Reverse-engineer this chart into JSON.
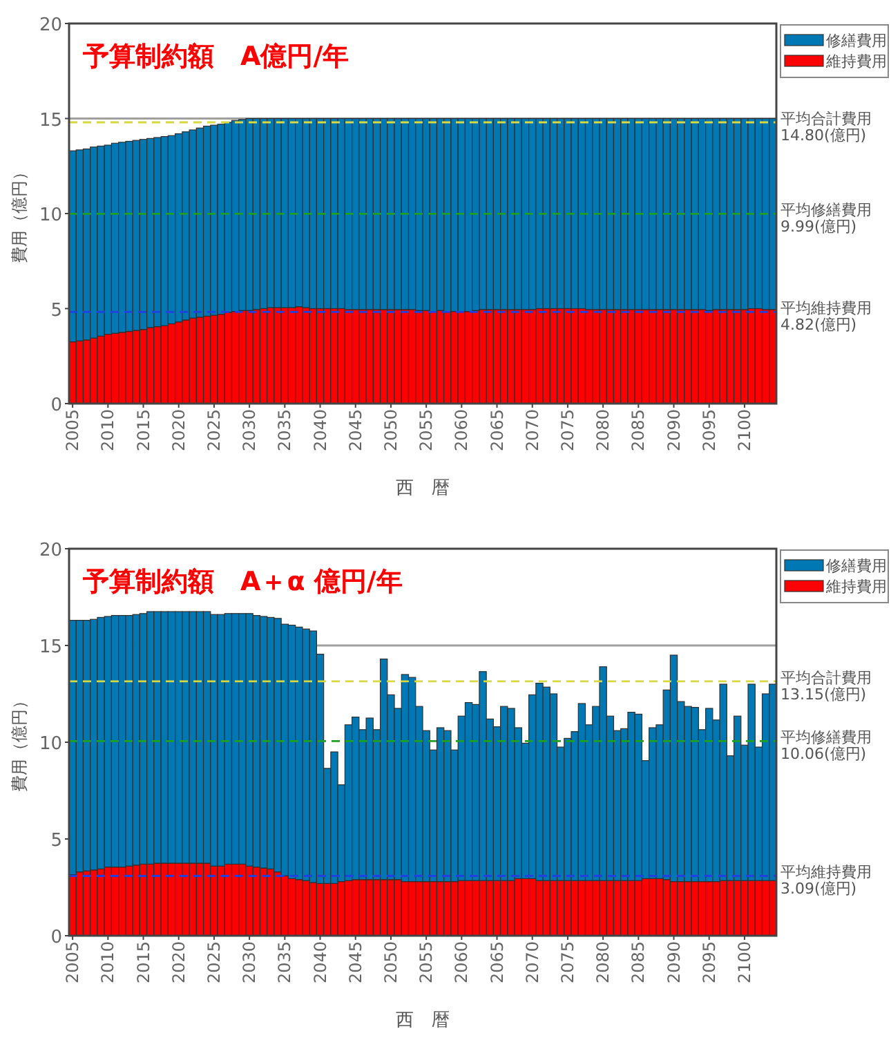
{
  "chart_data": [
    {
      "type": "bar",
      "title": "予算制約額　A億円/年",
      "xlabel": "西　暦",
      "ylabel": "費用（億円）",
      "stacked": true,
      "legend": "top right",
      "x": [
        2005,
        2006,
        2007,
        2008,
        2009,
        2010,
        2011,
        2012,
        2013,
        2014,
        2015,
        2016,
        2017,
        2018,
        2019,
        2020,
        2021,
        2022,
        2023,
        2024,
        2025,
        2026,
        2027,
        2028,
        2029,
        2030,
        2031,
        2032,
        2033,
        2034,
        2035,
        2036,
        2037,
        2038,
        2039,
        2040,
        2041,
        2042,
        2043,
        2044,
        2045,
        2046,
        2047,
        2048,
        2049,
        2050,
        2051,
        2052,
        2053,
        2054,
        2055,
        2056,
        2057,
        2058,
        2059,
        2060,
        2061,
        2062,
        2063,
        2064,
        2065,
        2066,
        2067,
        2068,
        2069,
        2070,
        2071,
        2072,
        2073,
        2074,
        2075,
        2076,
        2077,
        2078,
        2079,
        2080,
        2081,
        2082,
        2083,
        2084,
        2085,
        2086,
        2087,
        2088,
        2089,
        2090,
        2091,
        2092,
        2093,
        2094,
        2095,
        2096,
        2097,
        2098,
        2099,
        2100,
        2101,
        2102,
        2103,
        2104
      ],
      "xlim": [
        2004.5,
        2104.5
      ],
      "xticks": [
        2005,
        2010,
        2015,
        2020,
        2025,
        2030,
        2035,
        2040,
        2045,
        2050,
        2055,
        2060,
        2065,
        2070,
        2075,
        2080,
        2085,
        2090,
        2095,
        2100
      ],
      "ylim": [
        0,
        20
      ],
      "yticks": [
        0,
        5,
        10,
        15,
        20
      ],
      "series": [
        {
          "name": "維持費用",
          "color": "#ff0000",
          "values": [
            3.25,
            3.3,
            3.35,
            3.45,
            3.55,
            3.65,
            3.7,
            3.75,
            3.8,
            3.85,
            3.9,
            4.0,
            4.05,
            4.1,
            4.2,
            4.3,
            4.4,
            4.5,
            4.55,
            4.6,
            4.65,
            4.7,
            4.8,
            4.85,
            4.9,
            4.9,
            4.95,
            5.0,
            5.05,
            5.05,
            5.05,
            5.05,
            5.1,
            5.05,
            5.0,
            5.0,
            5.0,
            5.0,
            5.0,
            4.95,
            4.95,
            4.95,
            4.95,
            4.95,
            4.95,
            4.95,
            4.95,
            4.95,
            4.95,
            4.9,
            4.9,
            4.85,
            4.9,
            4.85,
            4.85,
            4.85,
            4.85,
            4.9,
            4.95,
            4.95,
            4.95,
            4.95,
            4.95,
            4.95,
            4.95,
            4.95,
            5.0,
            5.0,
            5.0,
            5.0,
            5.0,
            5.0,
            5.0,
            4.95,
            4.95,
            4.95,
            4.95,
            4.95,
            4.95,
            4.95,
            4.95,
            4.95,
            4.95,
            4.95,
            4.95,
            4.95,
            4.95,
            4.95,
            4.95,
            4.95,
            4.9,
            4.95,
            4.95,
            4.95,
            4.95,
            4.95,
            5.0,
            5.0,
            4.95,
            4.95
          ]
        },
        {
          "name": "修繕費用",
          "color": "#0078b4",
          "values": [
            10.05,
            10.05,
            10.05,
            10.05,
            10.0,
            9.95,
            10.0,
            10.0,
            10.0,
            10.0,
            10.0,
            9.95,
            9.95,
            9.95,
            9.9,
            9.9,
            9.9,
            9.9,
            9.95,
            10.0,
            10.0,
            10.0,
            10.0,
            10.05,
            10.05,
            10.1,
            10.05,
            10.0,
            9.95,
            9.95,
            9.95,
            9.95,
            9.9,
            9.95,
            10.0,
            10.0,
            10.0,
            10.0,
            10.0,
            10.05,
            10.05,
            10.05,
            10.05,
            10.05,
            10.05,
            10.05,
            10.05,
            10.05,
            10.05,
            10.1,
            10.1,
            10.15,
            10.1,
            10.15,
            10.15,
            10.15,
            10.15,
            10.1,
            10.05,
            10.05,
            10.05,
            10.05,
            10.05,
            10.05,
            10.05,
            10.05,
            10.0,
            10.0,
            10.0,
            10.0,
            10.0,
            10.0,
            10.0,
            10.05,
            10.05,
            10.05,
            10.05,
            10.05,
            10.05,
            10.05,
            10.05,
            10.05,
            10.05,
            10.05,
            10.05,
            10.05,
            10.05,
            10.05,
            10.05,
            10.05,
            10.1,
            10.05,
            10.05,
            10.05,
            10.05,
            10.05,
            10.0,
            10.0,
            10.05,
            10.05
          ]
        }
      ],
      "ref_lines": [
        {
          "axis": "y",
          "value": 15,
          "color": "#a0a0a0",
          "line_style": "solid"
        },
        {
          "axis": "y",
          "value": 14.8,
          "label": "平均合計費用 14.80(億円)",
          "color": "#d8d840",
          "line_style": "dashed"
        },
        {
          "axis": "y",
          "value": 9.99,
          "label": "平均修繕費用 9.99(億円)",
          "color": "#20a020",
          "line_style": "dashed"
        },
        {
          "axis": "y",
          "value": 4.82,
          "label": "平均維持費用 4.82(億円)",
          "color": "#2040e0",
          "line_style": "dashed"
        }
      ]
    },
    {
      "type": "bar",
      "title": "予算制約額　A＋α 億円/年",
      "xlabel": "西　暦",
      "ylabel": "費用（億円）",
      "stacked": true,
      "legend": "top right",
      "x": [
        2005,
        2006,
        2007,
        2008,
        2009,
        2010,
        2011,
        2012,
        2013,
        2014,
        2015,
        2016,
        2017,
        2018,
        2019,
        2020,
        2021,
        2022,
        2023,
        2024,
        2025,
        2026,
        2027,
        2028,
        2029,
        2030,
        2031,
        2032,
        2033,
        2034,
        2035,
        2036,
        2037,
        2038,
        2039,
        2040,
        2041,
        2042,
        2043,
        2044,
        2045,
        2046,
        2047,
        2048,
        2049,
        2050,
        2051,
        2052,
        2053,
        2054,
        2055,
        2056,
        2057,
        2058,
        2059,
        2060,
        2061,
        2062,
        2063,
        2064,
        2065,
        2066,
        2067,
        2068,
        2069,
        2070,
        2071,
        2072,
        2073,
        2074,
        2075,
        2076,
        2077,
        2078,
        2079,
        2080,
        2081,
        2082,
        2083,
        2084,
        2085,
        2086,
        2087,
        2088,
        2089,
        2090,
        2091,
        2092,
        2093,
        2094,
        2095,
        2096,
        2097,
        2098,
        2099,
        2100,
        2101,
        2102,
        2103,
        2104
      ],
      "xlim": [
        2004.5,
        2104.5
      ],
      "xticks": [
        2005,
        2010,
        2015,
        2020,
        2025,
        2030,
        2035,
        2040,
        2045,
        2050,
        2055,
        2060,
        2065,
        2070,
        2075,
        2080,
        2085,
        2090,
        2095,
        2100
      ],
      "ylim": [
        0,
        20
      ],
      "yticks": [
        0,
        5,
        10,
        15,
        20
      ],
      "series": [
        {
          "name": "維持費用",
          "color": "#ff0000",
          "values": [
            3.15,
            3.3,
            3.35,
            3.4,
            3.45,
            3.55,
            3.55,
            3.55,
            3.6,
            3.65,
            3.7,
            3.7,
            3.75,
            3.75,
            3.75,
            3.75,
            3.75,
            3.75,
            3.75,
            3.75,
            3.6,
            3.6,
            3.7,
            3.7,
            3.7,
            3.6,
            3.55,
            3.5,
            3.45,
            3.3,
            3.1,
            2.95,
            2.9,
            2.85,
            2.75,
            2.7,
            2.7,
            2.7,
            2.8,
            2.85,
            2.9,
            2.9,
            2.9,
            2.9,
            2.9,
            2.9,
            2.9,
            2.8,
            2.8,
            2.8,
            2.8,
            2.8,
            2.8,
            2.8,
            2.8,
            2.85,
            2.85,
            2.85,
            2.85,
            2.85,
            2.85,
            2.85,
            2.85,
            2.95,
            2.95,
            2.95,
            2.85,
            2.85,
            2.85,
            2.85,
            2.85,
            2.85,
            2.85,
            2.85,
            2.85,
            2.85,
            2.85,
            2.85,
            2.85,
            2.85,
            2.85,
            2.95,
            2.95,
            2.95,
            2.9,
            2.8,
            2.8,
            2.8,
            2.8,
            2.8,
            2.8,
            2.8,
            2.85,
            2.85,
            2.85,
            2.85,
            2.85,
            2.85,
            2.85,
            2.85
          ]
        },
        {
          "name": "修繕費用",
          "color": "#0078b4",
          "values": [
            13.15,
            13.0,
            12.95,
            12.95,
            13.0,
            12.95,
            13.0,
            13.0,
            12.95,
            12.95,
            12.95,
            13.05,
            13.0,
            13.0,
            13.0,
            13.0,
            13.0,
            13.0,
            13.0,
            13.0,
            13.0,
            13.0,
            12.95,
            12.95,
            12.95,
            13.05,
            13.0,
            13.0,
            13.0,
            13.1,
            13.0,
            13.1,
            13.05,
            13.0,
            13.0,
            11.85,
            5.95,
            6.8,
            5.0,
            8.05,
            8.4,
            7.75,
            8.35,
            7.75,
            11.4,
            9.55,
            8.85,
            10.7,
            10.55,
            9.05,
            7.8,
            6.8,
            7.95,
            7.8,
            6.8,
            8.5,
            9.2,
            9.1,
            10.8,
            8.35,
            7.95,
            9.0,
            8.9,
            7.8,
            7.0,
            9.5,
            10.2,
            10.0,
            9.65,
            6.9,
            7.35,
            7.7,
            9.15,
            8.05,
            9.0,
            11.05,
            8.5,
            7.75,
            7.85,
            8.7,
            8.6,
            6.1,
            7.8,
            7.95,
            9.8,
            11.7,
            9.3,
            9.05,
            9.0,
            7.85,
            8.95,
            8.35,
            10.15,
            6.45,
            8.5,
            7.0,
            10.15,
            6.9,
            9.65,
            10.15
          ]
        }
      ],
      "ref_lines": [
        {
          "axis": "y",
          "value": 15,
          "color": "#a0a0a0",
          "line_style": "solid"
        },
        {
          "axis": "y",
          "value": 13.15,
          "label": "平均合計費用 13.15(億円)",
          "color": "#d8d840",
          "line_style": "dashed"
        },
        {
          "axis": "y",
          "value": 10.06,
          "label": "平均修繕費用 10.06(億円)",
          "color": "#20a020",
          "line_style": "dashed"
        },
        {
          "axis": "y",
          "value": 3.09,
          "label": "平均維持費用 3.09(億円)",
          "color": "#2040e0",
          "line_style": "dashed"
        }
      ]
    }
  ]
}
